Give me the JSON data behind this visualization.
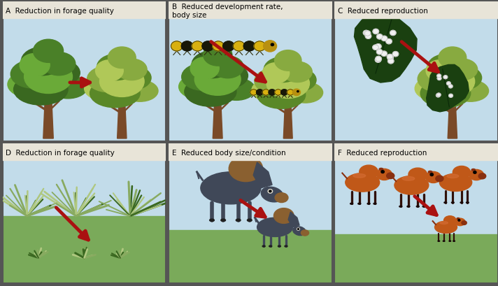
{
  "panel_titles": {
    "A": "A  Reduction in forage quality",
    "B": "B  Reduced development rate,\nbody size",
    "C": "C  Reduced reproduction",
    "D": "D  Reduction in forage quality",
    "E": "E  Reduced body size/condition",
    "F": "F  Reduced reproduction"
  },
  "sky_color": "#c2dcea",
  "ground_color": "#7aaa5a",
  "border_color": "#888888",
  "arrow_color": "#aa1111",
  "trunk_color": "#7a4a28",
  "canopy_dark": "#3a6820",
  "canopy_light": "#6aa030",
  "canopy_pale": "#a0c860",
  "grass_dark": "#3a6820",
  "grass_light": "#88aa60",
  "grass_pale": "#b0c880",
  "bison_dark": "#404858",
  "bison_brown": "#8a6030",
  "bison_white": "#e0ddd0",
  "calf_orange": "#c05818",
  "calf_dark": "#883010",
  "leaf_dark": "#1a4010",
  "egg_white": "#f0f0f0",
  "cat_yellow": "#d8b010",
  "cat_black": "#181808",
  "title_bg": "#e8e4d8"
}
